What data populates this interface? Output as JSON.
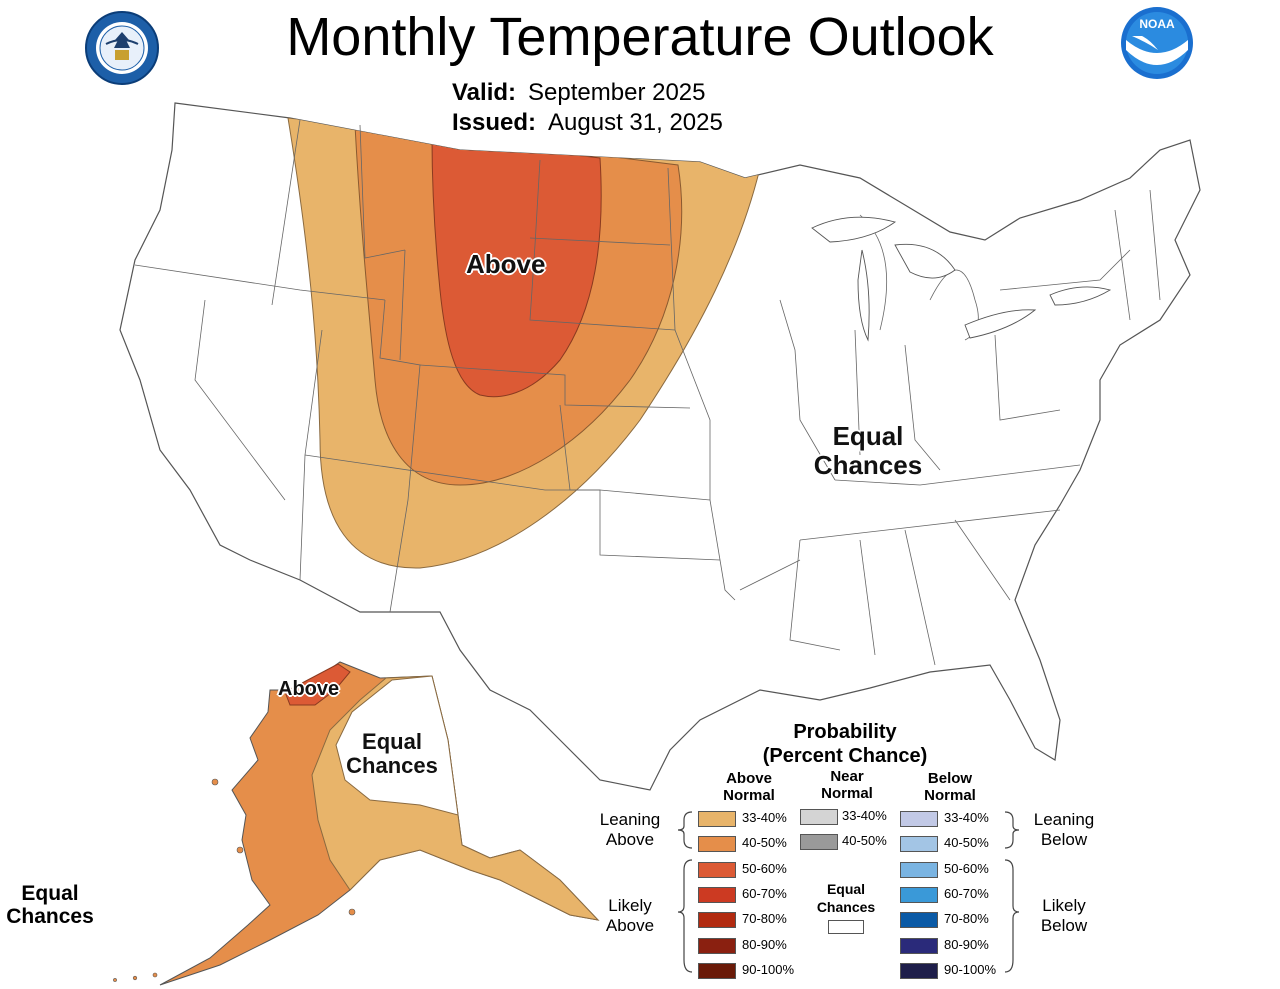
{
  "header": {
    "title": "Monthly Temperature Outlook",
    "valid_label": "Valid:",
    "valid_value": "September 2025",
    "issued_label": "Issued:",
    "issued_value": "August 31, 2025"
  },
  "logos": {
    "commerce_seal": "UNITED STATES OF AMERICA · DEPARTMENT OF COMMERCE",
    "noaa": "NOAA"
  },
  "map_labels": {
    "conus_above": "Above",
    "conus_equal_line1": "Equal",
    "conus_equal_line2": "Chances",
    "alaska_above": "Above",
    "alaska_equal_line1": "Equal",
    "alaska_equal_line2": "Chances",
    "hawaii_equal_line1": "Equal",
    "hawaii_equal_line2": "Chances"
  },
  "legend": {
    "title_line1": "Probability",
    "title_line2": "(Percent Chance)",
    "col_above": [
      "Above",
      "Normal"
    ],
    "col_near": [
      "Near",
      "Normal"
    ],
    "col_below": [
      "Below",
      "Normal"
    ],
    "leaning_above": [
      "Leaning",
      "Above"
    ],
    "likely_above": [
      "Likely",
      "Above"
    ],
    "leaning_below": [
      "Leaning",
      "Below"
    ],
    "likely_below": [
      "Likely",
      "Below"
    ],
    "equal_chances": [
      "Equal",
      "Chances"
    ],
    "above_bins": [
      {
        "label": "33-40%",
        "color": "#e8b46a"
      },
      {
        "label": "40-50%",
        "color": "#e58e4a"
      },
      {
        "label": "50-60%",
        "color": "#dc5a35"
      },
      {
        "label": "60-70%",
        "color": "#cc3a22"
      },
      {
        "label": "70-80%",
        "color": "#b22a10"
      },
      {
        "label": "80-90%",
        "color": "#8a2010"
      },
      {
        "label": "90-100%",
        "color": "#6a1a08"
      }
    ],
    "near_bins": [
      {
        "label": "33-40%",
        "color": "#d4d4d4"
      },
      {
        "label": "40-50%",
        "color": "#9a9a9a"
      }
    ],
    "below_bins": [
      {
        "label": "33-40%",
        "color": "#c2c9e6"
      },
      {
        "label": "40-50%",
        "color": "#a3c5e5"
      },
      {
        "label": "50-60%",
        "color": "#7ab4e2"
      },
      {
        "label": "60-70%",
        "color": "#3a99d8"
      },
      {
        "label": "70-80%",
        "color": "#0a5aa6"
      },
      {
        "label": "80-90%",
        "color": "#2a2a7a"
      },
      {
        "label": "90-100%",
        "color": "#1e1e4a"
      }
    ],
    "equal_color": "#ffffff"
  }
}
